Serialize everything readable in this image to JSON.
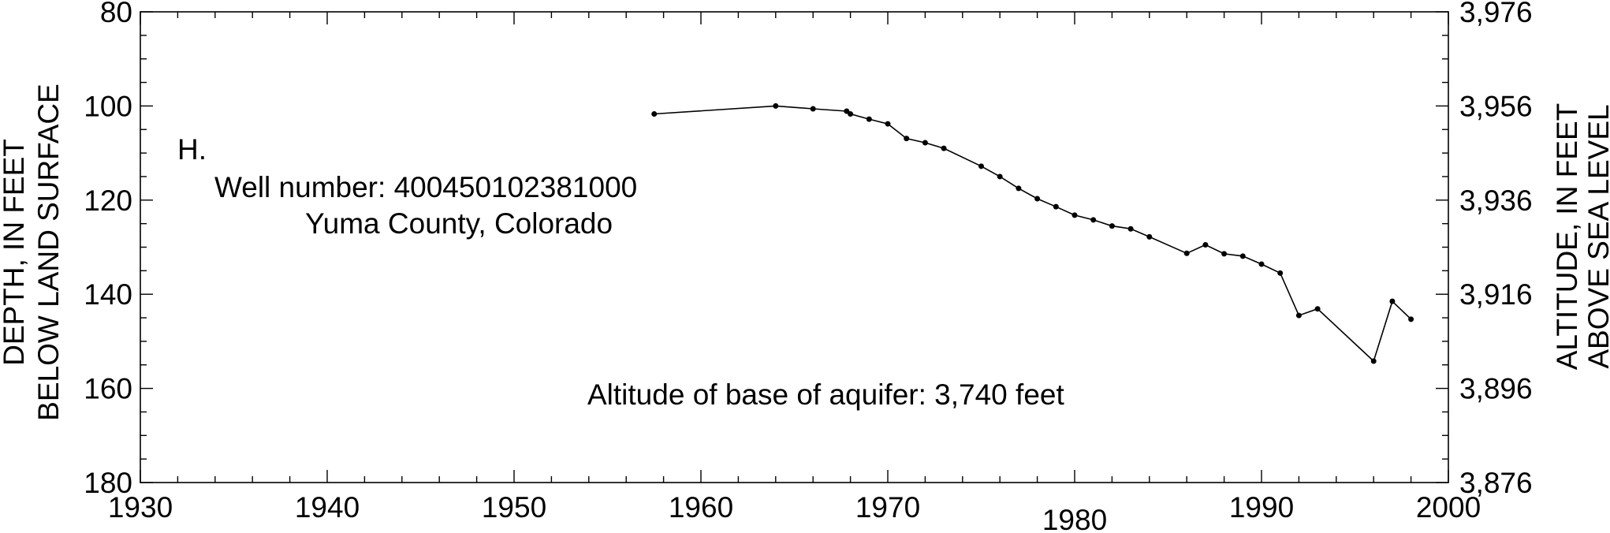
{
  "chart_data": {
    "type": "line",
    "x": [
      1957.5,
      1964,
      1966,
      1967.8,
      1968,
      1969,
      1970,
      1971,
      1972,
      1973,
      1975,
      1976,
      1977,
      1978,
      1979,
      1980,
      1981,
      1982,
      1983,
      1984,
      1986,
      1987,
      1988,
      1989,
      1990,
      1991,
      1992,
      1993,
      1996,
      1997,
      1998
    ],
    "values": [
      101.7,
      100,
      100.6,
      101.1,
      101.7,
      102.8,
      103.8,
      106.9,
      107.8,
      109,
      112.8,
      115,
      117.5,
      119.7,
      121.4,
      123.2,
      124.2,
      125.5,
      126.1,
      127.8,
      131.3,
      129.5,
      131.4,
      131.9,
      133.6,
      135.5,
      144.5,
      143.1,
      154.2,
      141.5,
      145.3
    ],
    "xlim": [
      1930,
      2000
    ],
    "ylim": [
      180,
      80
    ],
    "y_inverted": true,
    "grid": false,
    "x_ticks": [
      "1930",
      "1940",
      "1950",
      "1960",
      "1970",
      "1980",
      "1990",
      "2000"
    ],
    "y_ticks_left": [
      "80",
      "100",
      "120",
      "140",
      "160",
      "180"
    ],
    "y_ticks_right": [
      "3,976",
      "3,956",
      "3,936",
      "3,916",
      "3,896",
      "3,876"
    ],
    "ylabel_left_line1": "DEPTH, IN FEET",
    "ylabel_left_line2": "BELOW LAND SURFACE",
    "ylabel_right_line1": "ALTITUDE, IN FEET",
    "ylabel_right_line2": "ABOVE SEA LEVEL",
    "annotations": {
      "panel": "H.",
      "well": "Well number: 400450102381000",
      "county": "Yuma County, Colorado",
      "base": "Altitude of base of aquifer: 3,740 feet"
    }
  }
}
